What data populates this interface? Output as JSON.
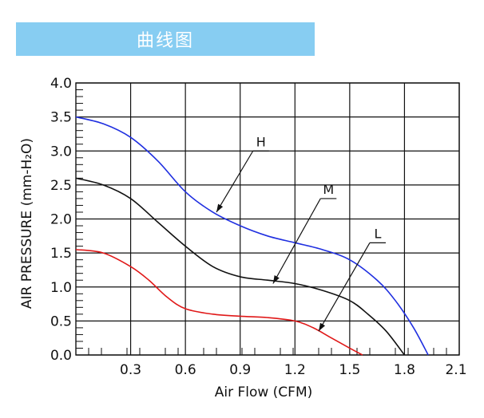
{
  "header": {
    "title": "曲线图",
    "banner_color": "#87cdf2"
  },
  "chart_data": {
    "type": "line",
    "title": "",
    "xlabel": "Air Flow (CFM)",
    "ylabel": "AIR PRESSURE (mm-H₂O)",
    "xlim": [
      0,
      2.1
    ],
    "ylim": [
      0,
      4.0
    ],
    "x_ticks": [
      0.3,
      0.6,
      0.9,
      1.2,
      1.5,
      1.8,
      2.1
    ],
    "x_tick_labels": [
      "0.3",
      "0.6",
      "0.9",
      "1.2",
      "1.5",
      "1.8",
      "2.1"
    ],
    "y_ticks": [
      0,
      0.5,
      1.0,
      1.5,
      2.0,
      2.5,
      3.0,
      3.5,
      4.0
    ],
    "y_tick_labels": [
      "0.0",
      "0.5",
      "1.0",
      "1.5",
      "2.0",
      "2.5",
      "3.0",
      "3.5",
      "4.0"
    ],
    "grid": true,
    "series": [
      {
        "name": "H",
        "color": "#1f2fe0",
        "x": [
          0,
          0.15,
          0.3,
          0.45,
          0.6,
          0.75,
          0.9,
          1.05,
          1.2,
          1.35,
          1.5,
          1.65,
          1.75,
          1.85,
          1.93
        ],
        "y": [
          3.5,
          3.4,
          3.2,
          2.85,
          2.4,
          2.1,
          1.9,
          1.75,
          1.65,
          1.55,
          1.4,
          1.1,
          0.8,
          0.4,
          0.0
        ],
        "label_at": [
          0.97,
          3.0
        ],
        "arrow_to": [
          0.77,
          2.1
        ]
      },
      {
        "name": "M",
        "color": "#111111",
        "x": [
          0,
          0.15,
          0.3,
          0.45,
          0.6,
          0.75,
          0.9,
          1.05,
          1.2,
          1.35,
          1.5,
          1.6,
          1.7,
          1.8
        ],
        "y": [
          2.6,
          2.5,
          2.3,
          1.95,
          1.6,
          1.3,
          1.15,
          1.1,
          1.05,
          0.95,
          0.8,
          0.6,
          0.35,
          0.0
        ],
        "label_at": [
          1.34,
          2.3
        ],
        "arrow_to": [
          1.08,
          1.05
        ]
      },
      {
        "name": "L",
        "color": "#e01818",
        "x": [
          0,
          0.15,
          0.3,
          0.4,
          0.5,
          0.6,
          0.75,
          0.9,
          1.05,
          1.2,
          1.3,
          1.4,
          1.5,
          1.57
        ],
        "y": [
          1.55,
          1.5,
          1.3,
          1.1,
          0.85,
          0.68,
          0.6,
          0.57,
          0.55,
          0.5,
          0.4,
          0.25,
          0.1,
          0.0
        ],
        "label_at": [
          1.61,
          1.65
        ],
        "arrow_to": [
          1.33,
          0.35
        ]
      }
    ]
  }
}
